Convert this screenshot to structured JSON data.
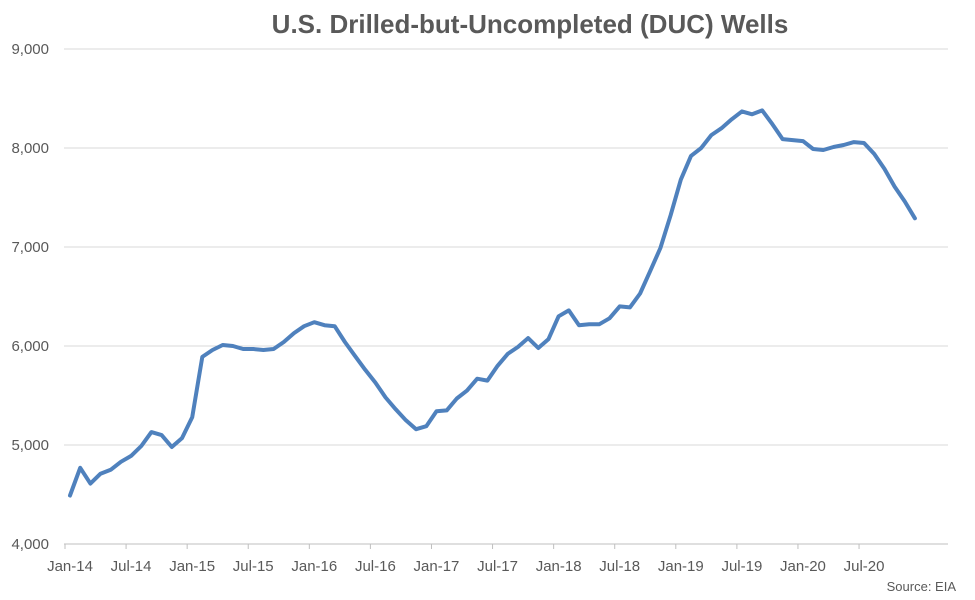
{
  "chart_data": {
    "type": "line",
    "title": "U.S. Drilled-but-Uncompleted (DUC) Wells",
    "source": "Source: EIA",
    "xlabel": "",
    "ylabel": "",
    "ylim": [
      4000,
      9000
    ],
    "y_ticks": [
      4000,
      5000,
      6000,
      7000,
      8000,
      9000
    ],
    "y_tick_labels": [
      "4,000",
      "5,000",
      "6,000",
      "7,000",
      "8,000",
      "9,000"
    ],
    "x_tick_labels": [
      "Jan-14",
      "Jul-14",
      "Jan-15",
      "Jul-15",
      "Jan-16",
      "Jul-16",
      "Jan-17",
      "Jul-17",
      "Jan-18",
      "Jul-18",
      "Jan-19",
      "Jul-19",
      "Jan-20",
      "Jul-20"
    ],
    "grid": true,
    "line_color": "#4f81bd",
    "series": [
      {
        "values": [
          4490,
          4770,
          4610,
          4710,
          4750,
          4830,
          4890,
          4990,
          5130,
          5100,
          4980,
          5070,
          5280,
          5890,
          5960,
          6010,
          6000,
          5970,
          5970,
          5960,
          5970,
          6040,
          6130,
          6200,
          6240,
          6210,
          6200,
          6040,
          5900,
          5760,
          5630,
          5480,
          5360,
          5250,
          5160,
          5190,
          5340,
          5350,
          5470,
          5550,
          5670,
          5650,
          5800,
          5920,
          5990,
          6080,
          5980,
          6070,
          6300,
          6360,
          6210,
          6220,
          6220,
          6280,
          6400,
          6390,
          6530,
          6760,
          6990,
          7320,
          7680,
          7920,
          8000,
          8130,
          8200,
          8290,
          8370,
          8340,
          8380,
          8240,
          8090,
          8080,
          8070,
          7990,
          7980,
          8010,
          8030,
          8060,
          8050,
          7940,
          7790,
          7610,
          7460,
          7290
        ]
      }
    ]
  }
}
